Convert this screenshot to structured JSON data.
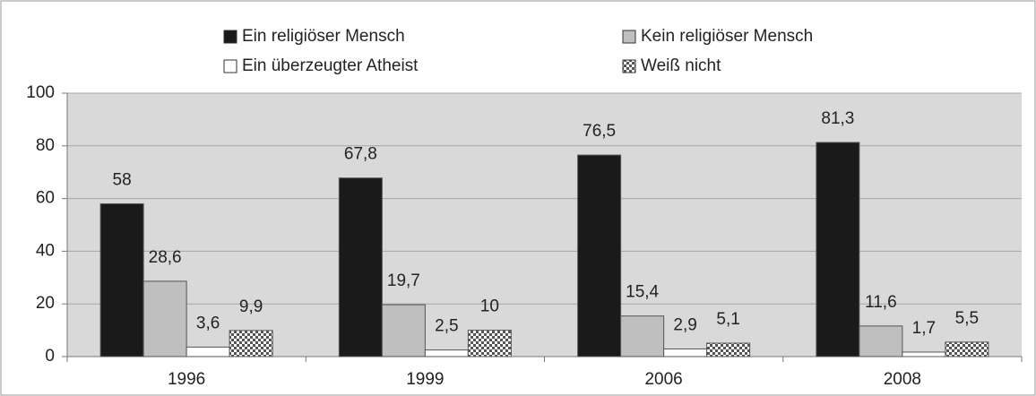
{
  "chart_data": {
    "type": "bar",
    "categories": [
      "1996",
      "1999",
      "2006",
      "2008"
    ],
    "series": [
      {
        "name": "Ein religiöser Mensch",
        "color": "#1a1a1a",
        "values": [
          58,
          67.8,
          76.5,
          81.3
        ],
        "value_labels": [
          "58",
          "67,8",
          "76,5",
          "81,3"
        ]
      },
      {
        "name": "Kein religiöser Mensch",
        "color": "#bfbfbf",
        "values": [
          28.6,
          19.7,
          15.4,
          11.6
        ],
        "value_labels": [
          "28,6",
          "19,7",
          "15,4",
          "11,6"
        ]
      },
      {
        "name": "Ein überzeugter Atheist",
        "color": "#ffffff",
        "values": [
          3.6,
          2.5,
          2.9,
          1.7
        ],
        "value_labels": [
          "3,6",
          "2,5",
          "2,9",
          "1,7"
        ]
      },
      {
        "name": "Weiß nicht",
        "color": "#555555",
        "pattern": "checker",
        "values": [
          9.9,
          10,
          5.1,
          5.5
        ],
        "value_labels": [
          "9,9",
          "10",
          "5,1",
          "5,5"
        ]
      }
    ],
    "ylim": [
      0,
      100
    ],
    "yticks": [
      0,
      20,
      40,
      60,
      80,
      100
    ],
    "grid": true,
    "plot_background": "#d9d9d9"
  }
}
